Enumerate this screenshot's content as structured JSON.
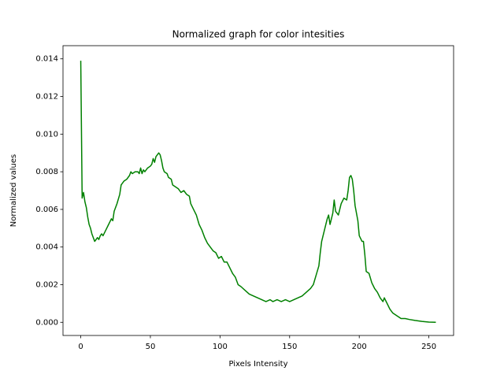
{
  "chart_data": {
    "type": "line",
    "title": "Normalized graph for color intesities",
    "x_label": "Pixels Intensity",
    "y_label": "Normalized values",
    "xlim": [
      -12.75,
      267.75
    ],
    "ylim": [
      -0.0007,
      0.0147
    ],
    "xticks": [
      0,
      50,
      100,
      150,
      200,
      250
    ],
    "yticks": [
      {
        "value": 0,
        "label": "0.000"
      },
      {
        "value": 0.002,
        "label": "0.002"
      },
      {
        "value": 0.004,
        "label": "0.004"
      },
      {
        "value": 0.006,
        "label": "0.006"
      },
      {
        "value": 0.008,
        "label": "0.008"
      },
      {
        "value": 0.01,
        "label": "0.010"
      },
      {
        "value": 0.012,
        "label": "0.012"
      },
      {
        "value": 0.014,
        "label": "0.014"
      }
    ],
    "grid": false,
    "color": "#008000",
    "x": [
      0,
      1,
      2,
      3,
      4,
      5,
      6,
      7,
      8,
      9,
      10,
      11,
      12,
      13,
      14,
      15,
      16,
      18,
      20,
      22,
      23,
      24,
      26,
      28,
      29,
      31,
      33,
      35,
      36,
      37,
      39,
      41,
      42,
      43,
      44,
      45,
      46,
      48,
      50,
      51,
      52,
      53,
      54,
      55,
      56,
      57,
      58,
      59,
      60,
      62,
      63,
      65,
      66,
      68,
      70,
      72,
      74,
      76,
      78,
      79,
      81,
      83,
      85,
      87,
      89,
      91,
      93,
      95,
      97,
      99,
      101,
      103,
      105,
      107,
      109,
      111,
      113,
      115,
      118,
      121,
      124,
      127,
      130,
      133,
      136,
      138,
      141,
      144,
      147,
      150,
      153,
      156,
      159,
      162,
      165,
      167,
      169,
      171,
      172,
      173,
      175,
      177,
      178,
      179,
      181,
      182,
      183,
      185,
      187,
      189,
      191,
      192,
      193,
      194,
      195,
      196,
      197,
      199,
      200,
      202,
      203,
      204,
      205,
      207,
      209,
      211,
      213,
      215,
      217,
      218,
      220,
      222,
      224,
      226,
      228,
      230,
      233,
      236,
      240,
      245,
      250,
      255
    ],
    "values": [
      0.0139,
      0.0066,
      0.0069,
      0.0064,
      0.0061,
      0.0056,
      0.0052,
      0.005,
      0.0047,
      0.0045,
      0.0043,
      0.0044,
      0.0045,
      0.0044,
      0.0046,
      0.0047,
      0.0046,
      0.0049,
      0.0052,
      0.0055,
      0.0054,
      0.0059,
      0.0063,
      0.0068,
      0.0073,
      0.0075,
      0.0076,
      0.0078,
      0.008,
      0.0079,
      0.008,
      0.008,
      0.0079,
      0.0082,
      0.0079,
      0.0081,
      0.008,
      0.0082,
      0.0083,
      0.0084,
      0.0087,
      0.0085,
      0.0088,
      0.0089,
      0.009,
      0.0089,
      0.0086,
      0.0082,
      0.008,
      0.0079,
      0.0077,
      0.0076,
      0.0073,
      0.0072,
      0.0071,
      0.0069,
      0.007,
      0.0068,
      0.0067,
      0.0063,
      0.006,
      0.0057,
      0.0052,
      0.0049,
      0.0045,
      0.0042,
      0.004,
      0.0038,
      0.0037,
      0.0034,
      0.0035,
      0.0032,
      0.0032,
      0.0029,
      0.0026,
      0.0024,
      0.002,
      0.0019,
      0.0017,
      0.0015,
      0.0014,
      0.0013,
      0.0012,
      0.0011,
      0.0012,
      0.0011,
      0.0012,
      0.0011,
      0.0012,
      0.0011,
      0.0012,
      0.0013,
      0.0014,
      0.0016,
      0.0018,
      0.002,
      0.0025,
      0.003,
      0.0037,
      0.0043,
      0.0049,
      0.0055,
      0.0057,
      0.0052,
      0.0058,
      0.0065,
      0.0059,
      0.0057,
      0.0063,
      0.0066,
      0.0065,
      0.007,
      0.0077,
      0.0078,
      0.0076,
      0.007,
      0.0062,
      0.0054,
      0.0046,
      0.0043,
      0.0043,
      0.0036,
      0.0027,
      0.0026,
      0.0021,
      0.0018,
      0.0016,
      0.0013,
      0.0011,
      0.0013,
      0.001,
      0.0007,
      0.0005,
      0.0004,
      0.0003,
      0.0002,
      0.0002,
      0.00015,
      0.0001,
      5e-05,
      1e-05,
      0
    ]
  }
}
